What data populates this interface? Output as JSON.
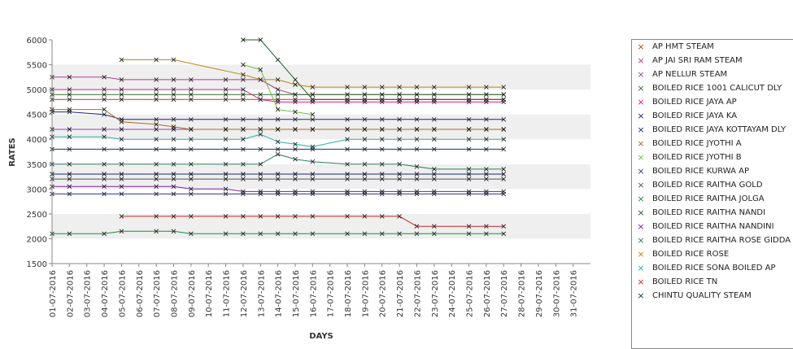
{
  "chart_data": {
    "type": "line",
    "xlabel": "DAYS",
    "ylabel": "RATES",
    "ylim": [
      1500,
      6000
    ],
    "yticks": [
      1500,
      2000,
      2500,
      3000,
      3500,
      4000,
      4500,
      5000,
      5500,
      6000
    ],
    "x": [
      "01-07-2016",
      "02-07-2016",
      "03-07-2016",
      "04-07-2016",
      "05-07-2016",
      "06-07-2016",
      "07-07-2016",
      "08-07-2016",
      "09-07-2016",
      "10-07-2016",
      "11-07-2016",
      "12-07-2016",
      "13-07-2016",
      "14-07-2016",
      "15-07-2016",
      "16-07-2016",
      "17-07-2016",
      "18-07-2016",
      "19-07-2016",
      "20-07-2016",
      "21-07-2016",
      "22-07-2016",
      "23-07-2016",
      "24-07-2016",
      "25-07-2016",
      "26-07-2016",
      "27-07-2016",
      "28-07-2016",
      "29-07-2016",
      "30-07-2016",
      "31-07-2016"
    ],
    "grid": "alternating horizontal bands",
    "legend_position": "right",
    "series": [
      {
        "name": "AP HMT STEAM",
        "color": "#c0392b",
        "values": [
          4800,
          4800,
          null,
          4800,
          4800,
          null,
          4800,
          4800,
          4800,
          null,
          4800,
          4800,
          4800,
          4800,
          4800,
          4800,
          null,
          4800,
          4800,
          4800,
          4800,
          4800,
          4800,
          null,
          4800,
          4800,
          4800,
          null,
          null,
          null,
          null
        ]
      },
      {
        "name": "AP JAI SRI RAM STEAM",
        "color": "#b03a8a",
        "values": [
          5250,
          5250,
          null,
          5250,
          5200,
          null,
          5200,
          5200,
          5200,
          null,
          5200,
          5200,
          5200,
          5000,
          4900,
          4900,
          null,
          4900,
          4900,
          4900,
          4900,
          4900,
          4900,
          null,
          4900,
          4900,
          4900,
          null,
          null,
          null,
          null
        ]
      },
      {
        "name": "AP NELLUR STEAM",
        "color": "#8e44ad",
        "values": [
          4200,
          4200,
          null,
          4200,
          4200,
          null,
          4200,
          4200,
          4200,
          null,
          4200,
          4200,
          4200,
          4200,
          4200,
          4200,
          null,
          4200,
          4200,
          4200,
          4200,
          4200,
          4200,
          null,
          4200,
          4200,
          4200,
          null,
          null,
          null,
          null
        ]
      },
      {
        "name": "BOILED RICE 1001 CALICUT DLY",
        "color": "#2c6e2f",
        "values": [
          4900,
          4900,
          null,
          4900,
          4900,
          null,
          4900,
          4900,
          4900,
          null,
          4900,
          4900,
          4900,
          4900,
          4900,
          4900,
          null,
          4900,
          4900,
          4900,
          4900,
          4900,
          4900,
          null,
          4900,
          4900,
          4900,
          null,
          null,
          null,
          null
        ]
      },
      {
        "name": "BOILED RICE JAYA AP",
        "color": "#e0198c",
        "values": [
          5000,
          5000,
          null,
          5000,
          5000,
          null,
          5000,
          5000,
          5000,
          null,
          5000,
          5000,
          4800,
          4750,
          4750,
          4750,
          null,
          4750,
          4750,
          4750,
          4750,
          4750,
          4750,
          null,
          4750,
          4750,
          4750,
          null,
          null,
          null,
          null
        ]
      },
      {
        "name": "BOILED RICE JAYA KA",
        "color": "#1a237e",
        "values": [
          4550,
          4550,
          null,
          4500,
          4400,
          null,
          4400,
          4400,
          4400,
          null,
          4400,
          4400,
          4400,
          4400,
          4400,
          4400,
          null,
          4400,
          4400,
          4400,
          4400,
          4400,
          4400,
          null,
          4400,
          4400,
          4400,
          null,
          null,
          null,
          null
        ]
      },
      {
        "name": "BOILED RICE JAYA KOTTAYAM DLY",
        "color": "#0d2f8c",
        "values": [
          3800,
          3800,
          null,
          3800,
          3800,
          null,
          3800,
          3800,
          3800,
          null,
          3800,
          3800,
          3800,
          3800,
          3800,
          3800,
          null,
          3800,
          3800,
          3800,
          3800,
          3800,
          3800,
          null,
          3800,
          3800,
          3800,
          null,
          null,
          null,
          null
        ]
      },
      {
        "name": "BOILED RICE JYOTHI A",
        "color": "#a86a2b",
        "values": [
          4600,
          4600,
          null,
          4600,
          4350,
          null,
          4300,
          4250,
          4200,
          null,
          4200,
          4200,
          4200,
          4200,
          4200,
          4200,
          null,
          4200,
          4200,
          4200,
          4200,
          4200,
          4200,
          null,
          4200,
          4200,
          4200,
          null,
          null,
          null,
          null
        ]
      },
      {
        "name": "BOILED RICE JYOTHI B",
        "color": "#6abf3f",
        "values": [
          null,
          null,
          null,
          null,
          null,
          null,
          null,
          null,
          null,
          null,
          null,
          5500,
          5400,
          4600,
          4550,
          4500,
          null,
          null,
          null,
          null,
          null,
          null,
          null,
          null,
          null,
          null,
          null,
          null,
          null,
          null,
          null
        ]
      },
      {
        "name": "BOILED RICE KURWA AP",
        "color": "#283593",
        "values": [
          2900,
          2900,
          null,
          2900,
          2900,
          null,
          2900,
          2900,
          2900,
          null,
          2900,
          2900,
          2900,
          2900,
          2900,
          2900,
          null,
          2900,
          2900,
          2900,
          2900,
          2900,
          2900,
          null,
          2900,
          2900,
          2900,
          null,
          null,
          null,
          null
        ]
      },
      {
        "name": "BOILED RICE RAITHA GOLD",
        "color": "#555555",
        "values": [
          3200,
          3200,
          null,
          3200,
          3200,
          null,
          3200,
          3200,
          3200,
          null,
          3200,
          3200,
          3200,
          3200,
          3200,
          3200,
          null,
          3200,
          3200,
          3200,
          3200,
          3200,
          3200,
          null,
          3200,
          3200,
          3200,
          null,
          null,
          null,
          null
        ]
      },
      {
        "name": "BOILED RICE RAITHA JOLGA",
        "color": "#1e8a3c",
        "values": [
          2100,
          2100,
          null,
          2100,
          2150,
          null,
          2150,
          2150,
          2100,
          null,
          2100,
          2100,
          2100,
          2100,
          2100,
          2100,
          null,
          2100,
          2100,
          2100,
          2100,
          2100,
          2100,
          null,
          2100,
          2100,
          2100,
          null,
          null,
          null,
          null
        ]
      },
      {
        "name": "BOILED RICE RAITHA NANDI",
        "color": "#1b5e20",
        "values": [
          null,
          null,
          null,
          null,
          null,
          null,
          null,
          null,
          null,
          null,
          null,
          6000,
          6000,
          5600,
          5200,
          4800,
          null,
          4800,
          4800,
          4800,
          4800,
          4800,
          4800,
          null,
          4800,
          4800,
          4800,
          null,
          null,
          null,
          null
        ]
      },
      {
        "name": "BOILED RICE RAITHA NANDINI",
        "color": "#7b1fa2",
        "values": [
          3050,
          3050,
          null,
          3050,
          3050,
          null,
          3050,
          3050,
          3000,
          null,
          3000,
          2950,
          2950,
          2950,
          2950,
          2950,
          null,
          2950,
          2950,
          2950,
          2950,
          2950,
          2950,
          null,
          2950,
          2950,
          2950,
          null,
          null,
          null,
          null
        ]
      },
      {
        "name": "BOILED RICE RAITHA ROSE GIDDA",
        "color": "#2e7d5b",
        "values": [
          3500,
          3500,
          null,
          3500,
          3500,
          null,
          3500,
          3500,
          3500,
          null,
          3500,
          3500,
          3500,
          3700,
          3600,
          3550,
          null,
          3500,
          3500,
          3500,
          3500,
          3450,
          3400,
          null,
          3400,
          3400,
          3400,
          null,
          null,
          null,
          null
        ]
      },
      {
        "name": "BOILED RICE ROSE",
        "color": "#b8860b",
        "values": [
          null,
          null,
          null,
          null,
          5600,
          null,
          5600,
          5600,
          null,
          null,
          null,
          5300,
          5200,
          5200,
          5100,
          5050,
          null,
          5050,
          5050,
          5050,
          5050,
          5050,
          5050,
          null,
          5050,
          5050,
          5050,
          null,
          null,
          null,
          null
        ]
      },
      {
        "name": "BOILED RICE SONA BOILED AP",
        "color": "#2ab0a0",
        "values": [
          4050,
          4050,
          null,
          4050,
          4000,
          null,
          4000,
          4000,
          4000,
          null,
          4000,
          4000,
          4100,
          3950,
          3900,
          3850,
          null,
          4000,
          4000,
          4000,
          4000,
          4000,
          4000,
          null,
          4000,
          4000,
          4000,
          null,
          null,
          null,
          null
        ]
      },
      {
        "name": "BOILED RICE TN",
        "color": "#c62828",
        "values": [
          null,
          null,
          null,
          null,
          2450,
          null,
          2450,
          2450,
          2450,
          null,
          2450,
          2450,
          2450,
          2450,
          2450,
          2450,
          null,
          2450,
          2450,
          2450,
          2450,
          2250,
          2250,
          null,
          2250,
          2250,
          2250,
          null,
          null,
          null,
          null
        ]
      },
      {
        "name": "CHINTU QUALITY STEAM",
        "color": "#1a2a6c",
        "values": [
          3300,
          3300,
          null,
          3300,
          3300,
          null,
          3300,
          3300,
          3300,
          null,
          3300,
          3300,
          3300,
          3300,
          3300,
          3300,
          null,
          3300,
          3300,
          3300,
          3300,
          3300,
          3300,
          null,
          3300,
          3300,
          3300,
          null,
          null,
          null,
          null
        ]
      }
    ]
  }
}
